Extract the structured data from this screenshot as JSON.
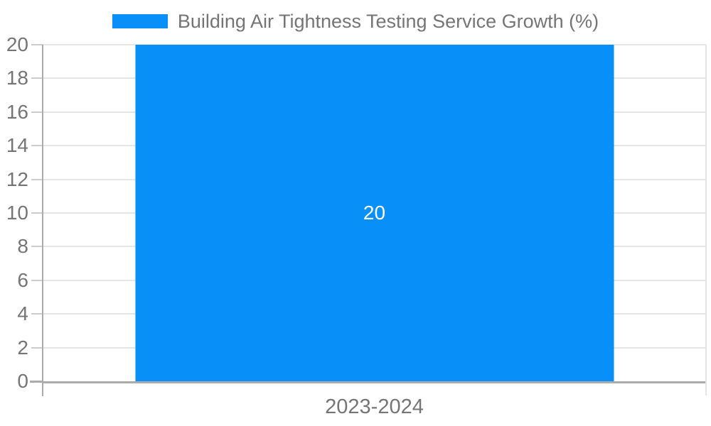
{
  "chart_data": {
    "type": "bar",
    "title": "",
    "legend": [
      "Building Air Tightness Testing Service Growth (%)"
    ],
    "legend_position": "top-center",
    "categories": [
      "2023-2024"
    ],
    "values": [
      20
    ],
    "data_labels": [
      "20"
    ],
    "xlabel": "",
    "ylabel": "",
    "ylim": [
      0,
      20
    ],
    "yticks": [
      0,
      2,
      4,
      6,
      8,
      10,
      12,
      14,
      16,
      18,
      20
    ],
    "grid": true,
    "colors": {
      "bar": "#0890F8",
      "bar_label": "#FFFFFF",
      "axis_text": "#757575",
      "axis_line": "#ABABAB",
      "gridline": "#E5E5E5",
      "background": "#FFFFFF"
    }
  }
}
